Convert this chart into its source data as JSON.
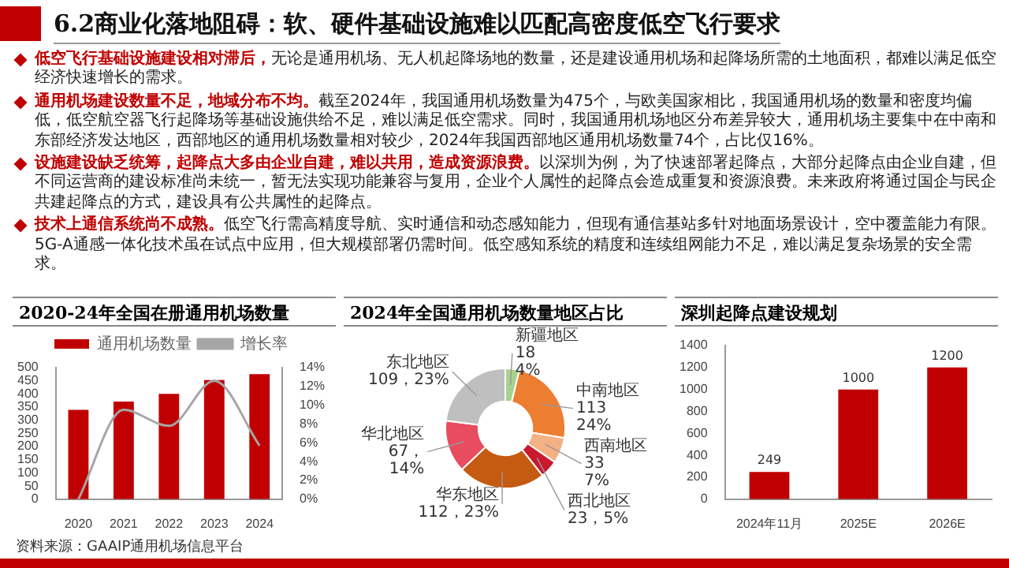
{
  "chart_data": [
    {
      "type": "other",
      "title": "6.2商业化落地阻碍：软、硬件基础设施难以匹配高密度低空飞行要求",
      "annotations": [
        "低空飞行基础设施建设相对滞后，",
        "无论是通用机场、无人机起降场地的数量，还是建设通用机场和起降场所需的土地面积，都难以满足低空经济快速增长的需求。",
        "通用机场建设数量不足，地域分布不均。",
        "截至2024年，我国通用机场数量为475个，与欧美国家相比，我国通用机场的数量和密度均偏低，低空航空器飞行起降场等基础设施供给不足，难以满足低空需求。同时，我国通用机场地区分布差异较大，通用机场主要集中在中南和东部经济发达地区，西部地区的通用机场数量相对较少，2024年我国西部地区通用机场数量74个，占比仅16%。",
        "设施建设缺乏统筹，起降点大多由企业自建，难以共用，造成资源浪费。",
        "以深圳为例，为了快速部署起降点，大部分起降点由企业自建，但不同运营商的建设标准尚未统一，暂无法实现功能兼容与复用，企业个人属性的起降点会造成重复和资源浪费。未来政府将通过国企与民企共建起降点的方式，建设具有公共属性的起降点。",
        "技术上通信系统尚不成熟。",
        "低空飞行需高精度导航、实时通信和动态感知能力，但现有通信基站多针对地面场景设计，空中覆盖能力有限。5G-A通感一体化技术虽在试点中应用，但大规模部署仍需时间。低空感知系统的精度和连续组网能力不足，难以满足复杂场景的安全需求。"
      ]
    },
    {
      "type": "bar",
      "title": "2020-24年全国在册通用机场数量",
      "categories": [
        "2020",
        "2021",
        "2022",
        "2023",
        "2024"
      ],
      "series": [
        {
          "name": "通用机场数量",
          "color": "#c00000",
          "values": [
            340,
            371,
            400,
            453,
            475
          ]
        },
        {
          "name": "增长率",
          "type": "line",
          "axis": "y2",
          "color": "#a6a6a6",
          "values": [
            0,
            9.5,
            7.8,
            12.6,
            5.7
          ]
        }
      ],
      "ylim": [
        0,
        500
      ],
      "yticks": [
        0,
        50,
        100,
        150,
        200,
        250,
        300,
        350,
        400,
        450,
        500
      ],
      "y2lim": [
        0,
        14
      ],
      "y2ticks": [
        {
          "value": 0,
          "label": "0%"
        },
        {
          "value": 2,
          "label": "2%"
        },
        {
          "value": 4,
          "label": "4%"
        },
        {
          "value": 6,
          "label": "6%"
        },
        {
          "value": 8,
          "label": "8%"
        },
        {
          "value": 10,
          "label": "10%"
        },
        {
          "value": 12,
          "label": "12%"
        },
        {
          "value": 14,
          "label": "14%"
        }
      ],
      "legend": "top",
      "marker": "none",
      "annotations": [
        "资料来源：GAAIP通用机场信息平台"
      ]
    },
    {
      "type": "donut",
      "title": "2024年全国通用机场数量地区占比",
      "categories": [
        "新疆地区",
        "中南地区",
        "西南地区",
        "西北地区",
        "华东地区",
        "华北地区",
        "东北地区"
      ],
      "values": [
        18,
        113,
        33,
        23,
        112,
        67,
        109
      ],
      "colors": [
        "#a9d18e",
        "#ed7d31",
        "#f4b183",
        "#c9192e",
        "#c55a11",
        "#e84c5f",
        "#bfbfbf"
      ],
      "value_labels": [
        "18\n4%",
        "113\n24%",
        "33\n7%",
        "23，5%",
        "112，23%",
        "67，\n14%",
        "109，23%"
      ]
    },
    {
      "type": "bar",
      "title": "深圳起降点建设规划",
      "categories": [
        "2024年11月",
        "2025E",
        "2026E"
      ],
      "values": [
        249,
        1000,
        1200
      ],
      "color": "#c00000",
      "ylim": [
        0,
        1400
      ],
      "yticks": [
        0,
        200,
        400,
        600,
        800,
        1000,
        1200,
        1400
      ],
      "data_labels": true
    }
  ]
}
